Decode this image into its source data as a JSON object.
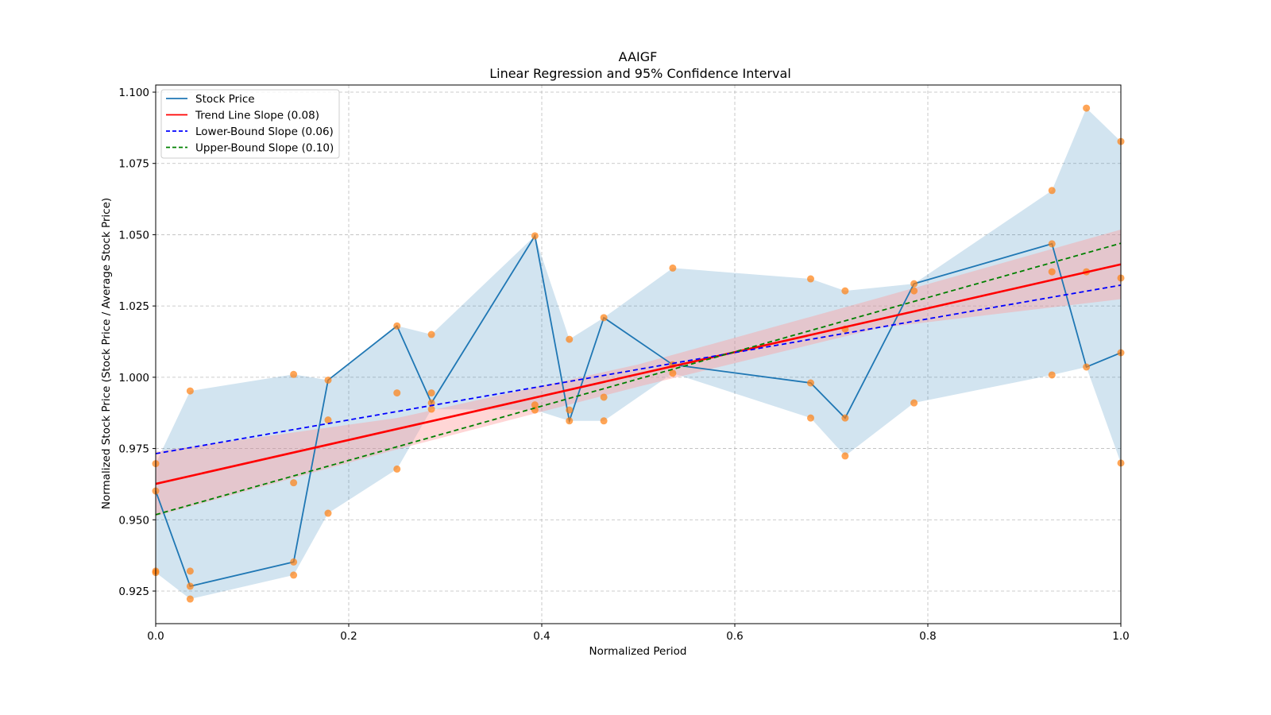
{
  "chart_data": {
    "type": "line",
    "title": "AAIGF",
    "subtitle": "Linear Regression and 95% Confidence Interval",
    "xlabel": "Normalized Period",
    "ylabel": "Normalized Stock Price (Stock Price / Average Stock Price)",
    "xlim": [
      0.0,
      1.0
    ],
    "ylim": [
      0.914,
      1.102
    ],
    "xticks": [
      "0.0",
      "0.2",
      "0.4",
      "0.6",
      "0.8",
      "1.0"
    ],
    "xtick_values": [
      0.0,
      0.2,
      0.4,
      0.6,
      0.8,
      1.0
    ],
    "yticks": [
      "0.925",
      "0.950",
      "0.975",
      "1.000",
      "1.025",
      "1.050",
      "1.075",
      "1.100"
    ],
    "ytick_values": [
      0.925,
      0.95,
      0.975,
      1.0,
      1.025,
      1.05,
      1.075,
      1.1
    ],
    "grid": true,
    "legend_position": "top-left",
    "colors": {
      "stock": "#1f77b4",
      "scatter": "#ff7f0e",
      "range_fill": "#1f77b4",
      "trend": "#ff0000",
      "ci_fill": "#ff9999",
      "lower": "#0000ff",
      "upper": "#008000",
      "grid": "#b0b0b0"
    },
    "legend": [
      {
        "label": "Stock Price",
        "style": "solid",
        "color": "#1f77b4"
      },
      {
        "label": "Trend Line Slope (0.08)",
        "style": "solid",
        "color": "#ff0000"
      },
      {
        "label": "Lower-Bound Slope (0.06)",
        "style": "dashed",
        "color": "#0000ff"
      },
      {
        "label": "Upper-Bound Slope (0.10)",
        "style": "dashed",
        "color": "#008000"
      }
    ],
    "x": [
      0.0,
      0.0357,
      0.1429,
      0.1786,
      0.25,
      0.2857,
      0.3929,
      0.4286,
      0.4643,
      0.5357,
      0.6786,
      0.7143,
      0.7857,
      0.9286,
      0.9643,
      1.0
    ],
    "series": [
      {
        "name": "Stock Price",
        "values": [
          0.9601,
          0.9267,
          0.9352,
          0.999,
          1.018,
          0.991,
          1.0496,
          0.9847,
          1.0209,
          1.0044,
          0.998,
          0.9857,
          1.0328,
          1.0468,
          1.0036,
          1.0086
        ]
      }
    ],
    "scatter_points": [
      {
        "x": 0.0,
        "ys": [
          0.9697,
          0.9601,
          0.932,
          0.9315
        ]
      },
      {
        "x": 0.0357,
        "ys": [
          0.9952,
          0.932,
          0.9267,
          0.9222
        ]
      },
      {
        "x": 0.1429,
        "ys": [
          1.001,
          0.963,
          0.9352,
          0.9306
        ]
      },
      {
        "x": 0.1786,
        "ys": [
          0.999,
          0.985,
          0.9523
        ]
      },
      {
        "x": 0.25,
        "ys": [
          1.018,
          0.9945,
          0.9678
        ]
      },
      {
        "x": 0.2857,
        "ys": [
          1.015,
          0.9945,
          0.991,
          0.9888
        ]
      },
      {
        "x": 0.3929,
        "ys": [
          1.0496,
          0.9903,
          0.9885
        ]
      },
      {
        "x": 0.4286,
        "ys": [
          1.0133,
          0.9885,
          0.9847
        ]
      },
      {
        "x": 0.4643,
        "ys": [
          1.0209,
          0.993,
          0.9847
        ]
      },
      {
        "x": 0.5357,
        "ys": [
          1.0383,
          1.0044,
          1.0014
        ]
      },
      {
        "x": 0.6786,
        "ys": [
          1.0345,
          0.998,
          0.9857
        ]
      },
      {
        "x": 0.7143,
        "ys": [
          1.0303,
          1.0169,
          0.9857,
          0.9724
        ]
      },
      {
        "x": 0.7857,
        "ys": [
          1.0328,
          1.0303,
          0.991
        ]
      },
      {
        "x": 0.9286,
        "ys": [
          1.0655,
          1.0468,
          1.037,
          1.0008
        ]
      },
      {
        "x": 0.9643,
        "ys": [
          1.0944,
          1.037,
          1.0036
        ]
      },
      {
        "x": 1.0,
        "ys": [
          1.0827,
          1.0348,
          1.0086,
          0.9699
        ]
      }
    ],
    "trend_line": {
      "slope": 0.077,
      "intercept": 0.9626
    },
    "lower_bound_line": {
      "slope": 0.0591,
      "intercept": 0.9732
    },
    "upper_bound_line": {
      "slope": 0.0952,
      "intercept": 0.9518
    },
    "confidence_band": {
      "x": [
        0.0,
        0.25,
        0.5,
        0.75,
        1.0
      ],
      "lower": [
        0.9513,
        0.9747,
        0.9967,
        1.0173,
        1.0274
      ],
      "upper": [
        0.9739,
        0.9857,
        1.0045,
        1.0279,
        1.0518
      ]
    }
  }
}
